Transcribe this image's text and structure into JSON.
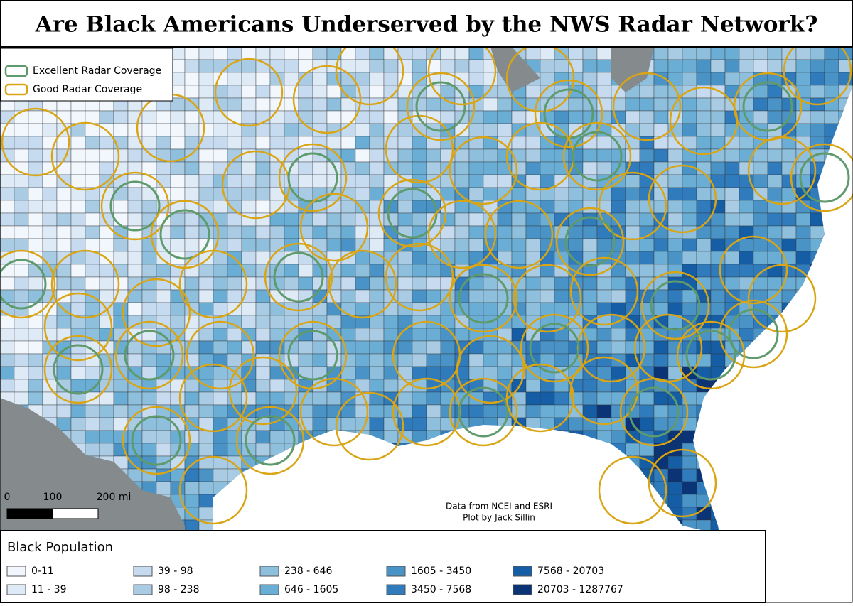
{
  "header": {
    "title": "Are Black Americans Underserved by the NWS Radar Network?"
  },
  "coverage_legend": [
    {
      "label": "Excellent Radar Coverage",
      "color": "#5f9a6c"
    },
    {
      "label": "Good Radar Coverage",
      "color": "#d9a514"
    }
  ],
  "scale_bar": {
    "labels": [
      "0",
      "100",
      "200 mi"
    ]
  },
  "credits": [
    "Data from NCEI and ESRI",
    "Plot by Jack Sillin"
  ],
  "population_legend": {
    "title": "Black Population",
    "classes": [
      {
        "label": "0-11",
        "color": "#f2f7fd"
      },
      {
        "label": "11 - 39",
        "color": "#deebf7"
      },
      {
        "label": "39 - 98",
        "color": "#c6dbef"
      },
      {
        "label": "98 - 238",
        "color": "#a9cce4"
      },
      {
        "label": "238 - 646",
        "color": "#8ebfdd"
      },
      {
        "label": "646 - 1605",
        "color": "#6aaed6"
      },
      {
        "label": "1605 - 3450",
        "color": "#4a93c6"
      },
      {
        "label": "3450 - 7568",
        "color": "#2f7bbc"
      },
      {
        "label": "7568 - 20703",
        "color": "#155ea5"
      },
      {
        "label": "20703 - 1287767",
        "color": "#0b3476"
      }
    ]
  }
}
